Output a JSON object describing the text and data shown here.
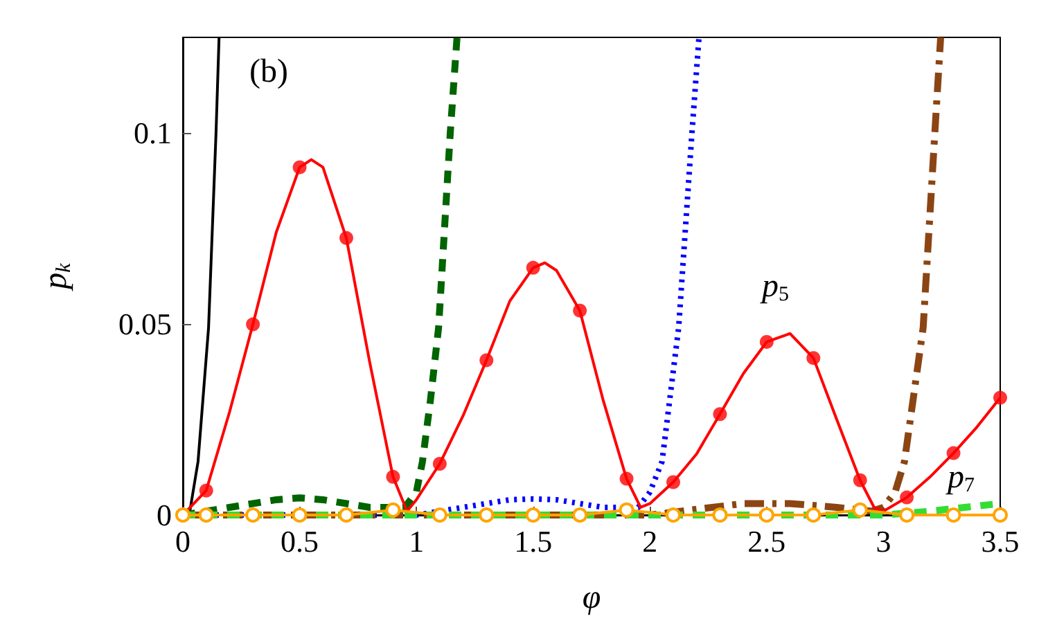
{
  "chart_data": {
    "type": "line",
    "xlabel": "φ",
    "ylabel": "p$_{k}$",
    "xlim": [
      0,
      3.5
    ],
    "xticks": [
      0,
      0.5,
      1,
      1.5,
      2,
      2.5,
      3,
      3.5
    ],
    "ylim": [
      0,
      0.125
    ],
    "yticks": [
      0,
      0.05,
      0.1
    ],
    "grid": false,
    "annotations": [
      "(b)",
      "p$_{5}$",
      "p$_{7}$"
    ],
    "series": [
      {
        "color": "#000000",
        "line_style": "solid",
        "marker": "none",
        "x": [
          0,
          0.03,
          0.065,
          0.11,
          0.142,
          0.155
        ],
        "values": [
          0,
          0.001,
          0.014,
          0.049,
          0.1,
          0.125
        ]
      },
      {
        "color": "#006400",
        "line_style": "dashed",
        "marker": "none",
        "x": [
          0,
          0.2,
          0.4,
          0.5,
          0.6,
          0.8,
          0.95,
          1.0,
          1.026,
          1.06,
          1.095,
          1.145,
          1.174
        ],
        "values": [
          0,
          0.002,
          0.004,
          0.0045,
          0.004,
          0.002,
          0.002,
          0.006,
          0.014,
          0.03,
          0.049,
          0.1,
          0.125
        ]
      },
      {
        "color": "#0000ff",
        "line_style": "dotted",
        "marker": "none",
        "x": [
          0,
          1.0,
          1.2,
          1.4,
          1.5,
          1.6,
          1.8,
          1.95,
          2.0,
          2.052,
          2.123,
          2.18,
          2.21
        ],
        "values": [
          0,
          0,
          0.002,
          0.004,
          0.0042,
          0.004,
          0.002,
          0.002,
          0.006,
          0.014,
          0.049,
          0.1,
          0.125
        ]
      },
      {
        "color": "#8b4513",
        "line_style": "dashdot",
        "marker": "none",
        "x": [
          0,
          2.0,
          2.2,
          2.4,
          2.5,
          2.6,
          2.8,
          2.95,
          3.0,
          3.05,
          3.09,
          3.17,
          3.22,
          3.245
        ],
        "values": [
          0,
          0,
          0.0015,
          0.003,
          0.003,
          0.003,
          0.002,
          0.001,
          0.002,
          0.006,
          0.014,
          0.049,
          0.1,
          0.125
        ]
      },
      {
        "color": "#33dd33",
        "line_style": "dashed",
        "marker": "none",
        "x": [
          0,
          3.0,
          3.2,
          3.5
        ],
        "values": [
          0,
          0,
          0.001,
          0.003
        ]
      },
      {
        "color": "#ff0000",
        "line_style": "solid",
        "marker": "none",
        "x": [
          0,
          0.1,
          0.2,
          0.3,
          0.4,
          0.5,
          0.55,
          0.6,
          0.7,
          0.8,
          0.9,
          0.96,
          1.0,
          1.1,
          1.2,
          1.3,
          1.4,
          1.5,
          1.55,
          1.6,
          1.7,
          1.8,
          1.9,
          1.96,
          2.0,
          2.1,
          2.2,
          2.3,
          2.4,
          2.5,
          2.6,
          2.7,
          2.8,
          2.9,
          2.96,
          3.0,
          3.1,
          3.2,
          3.3,
          3.4,
          3.5
        ],
        "values": [
          0,
          0.0064,
          0.027,
          0.0499,
          0.074,
          0.091,
          0.093,
          0.091,
          0.0725,
          0.04,
          0.01,
          0.001,
          0.004,
          0.0134,
          0.026,
          0.0405,
          0.056,
          0.0647,
          0.066,
          0.064,
          0.0535,
          0.03,
          0.0095,
          0.002,
          0.003,
          0.0086,
          0.016,
          0.0264,
          0.037,
          0.0453,
          0.0475,
          0.0411,
          0.025,
          0.0091,
          0.002,
          0.001,
          0.0046,
          0.01,
          0.0162,
          0.023,
          0.0307
        ]
      },
      {
        "type": "scatter",
        "color": "#ff0000",
        "marker": "circle",
        "x": [
          0.1,
          0.3,
          0.5,
          0.7,
          0.9,
          1.1,
          1.3,
          1.5,
          1.7,
          1.9,
          2.1,
          2.3,
          2.5,
          2.7,
          2.9,
          3.1,
          3.3,
          3.5
        ],
        "values": [
          0.0064,
          0.0499,
          0.091,
          0.0725,
          0.01,
          0.0134,
          0.0405,
          0.0647,
          0.0535,
          0.0095,
          0.0086,
          0.0264,
          0.0453,
          0.0411,
          0.0091,
          0.0046,
          0.0162,
          0.0307
        ]
      },
      {
        "color": "#ffa500",
        "line_style": "solid",
        "marker": "circle",
        "x": [
          0,
          0.1,
          0.3,
          0.5,
          0.7,
          0.9,
          1.1,
          1.3,
          1.5,
          1.7,
          1.9,
          2.1,
          2.3,
          2.5,
          2.7,
          2.9,
          3.1,
          3.3,
          3.5
        ],
        "values": [
          0,
          0,
          0,
          0,
          0,
          0.0013,
          0,
          0,
          0,
          0,
          0.0013,
          0,
          0,
          0,
          0,
          0.0013,
          0,
          0,
          0
        ]
      }
    ]
  }
}
